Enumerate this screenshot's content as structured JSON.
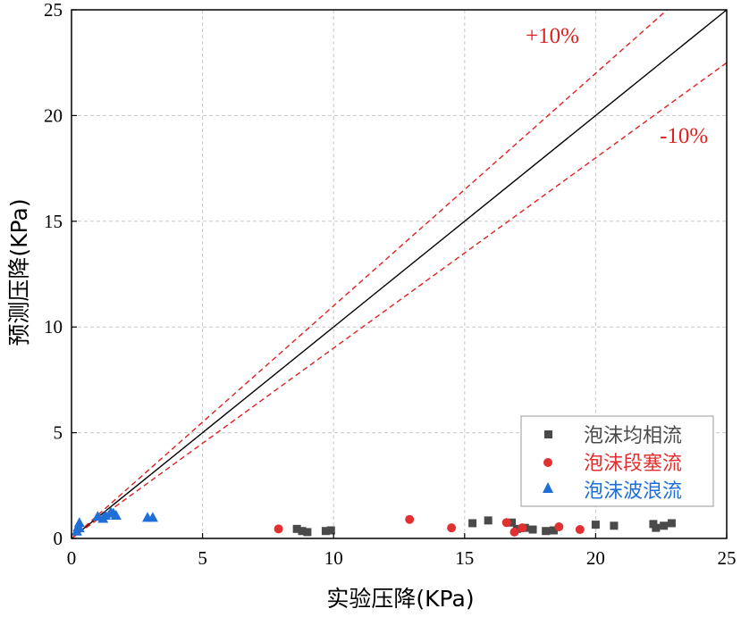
{
  "chart_data": {
    "type": "scatter",
    "title": "",
    "xlabel": "实验压降(KPa)",
    "ylabel": "预测压降(KPa)",
    "xlim": [
      0,
      25
    ],
    "ylim": [
      0,
      25
    ],
    "xticks": [
      "0",
      "5",
      "10",
      "15",
      "20",
      "25"
    ],
    "yticks": [
      "0",
      "5",
      "10",
      "15",
      "20",
      "25"
    ],
    "grid": true,
    "legend_position": "bottom-right",
    "reference_lines": [
      {
        "label": "",
        "slope": 1.0,
        "style": "solid",
        "color": "#000000"
      },
      {
        "label": "+10%",
        "slope": 1.1,
        "style": "dashed",
        "color": "#e02020"
      },
      {
        "label": "-10%",
        "slope": 0.9,
        "style": "dashed",
        "color": "#e02020"
      }
    ],
    "annotations": [
      {
        "text": "+10%",
        "color": "#e02020"
      },
      {
        "text": "-10%",
        "color": "#e02020"
      }
    ],
    "series": [
      {
        "name": "泡沫均相流",
        "marker": "square",
        "color": "#4a4a4a",
        "x": [
          8.6,
          8.8,
          9.0,
          9.7,
          9.9,
          15.3,
          15.9,
          16.8,
          17.0,
          17.3,
          17.6,
          18.1,
          18.4,
          20.0,
          20.7,
          22.2,
          22.3,
          22.6,
          22.9
        ],
        "y": [
          0.45,
          0.35,
          0.3,
          0.35,
          0.38,
          0.72,
          0.85,
          0.75,
          0.45,
          0.5,
          0.42,
          0.35,
          0.38,
          0.65,
          0.6,
          0.68,
          0.5,
          0.6,
          0.72
        ]
      },
      {
        "name": "泡沫段塞流",
        "marker": "circle",
        "color": "#e03030",
        "x": [
          7.9,
          12.9,
          14.5,
          16.6,
          16.9,
          17.2,
          18.6,
          19.4
        ],
        "y": [
          0.45,
          0.9,
          0.5,
          0.75,
          0.3,
          0.5,
          0.55,
          0.42
        ]
      },
      {
        "name": "泡沫波浪流",
        "marker": "triangle",
        "color": "#1f6fd6",
        "x": [
          0.2,
          0.25,
          0.3,
          0.3,
          1.0,
          1.2,
          1.3,
          1.5,
          1.6,
          1.7,
          2.9,
          3.1
        ],
        "y": [
          0.35,
          0.55,
          0.75,
          0.5,
          1.05,
          0.95,
          1.1,
          1.25,
          1.2,
          1.1,
          1.0,
          1.0
        ]
      }
    ]
  }
}
